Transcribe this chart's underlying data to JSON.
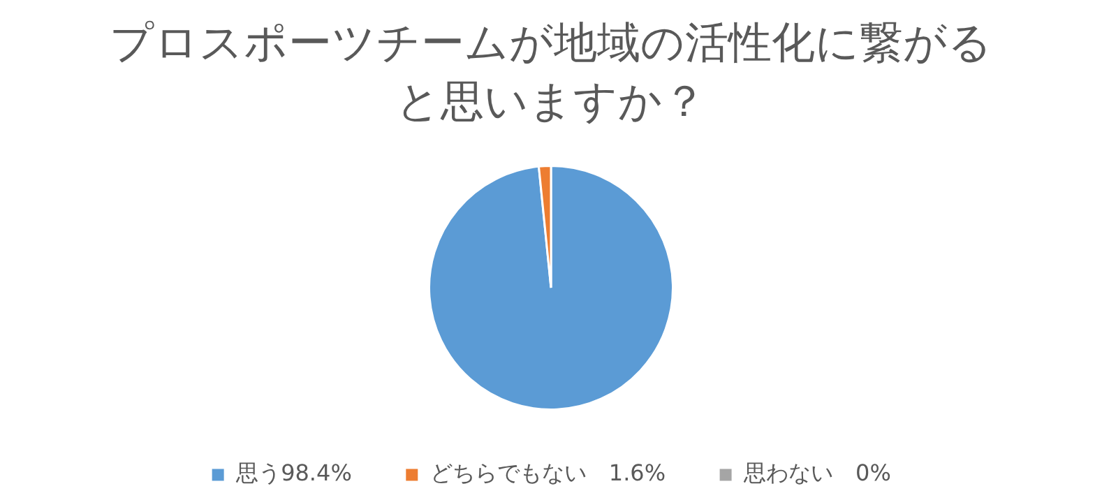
{
  "chart_data": {
    "type": "pie",
    "title": "プロスポーツチームが地域の活性化に繋がると思いますか？",
    "categories": [
      "思う98.4%",
      "どちらでもない　1.6%",
      "思わない　0%"
    ],
    "values": [
      98.4,
      1.6,
      0
    ],
    "colors": [
      "#5b9bd5",
      "#ed7d31",
      "#a5a5a5"
    ],
    "legend": "bottom"
  }
}
